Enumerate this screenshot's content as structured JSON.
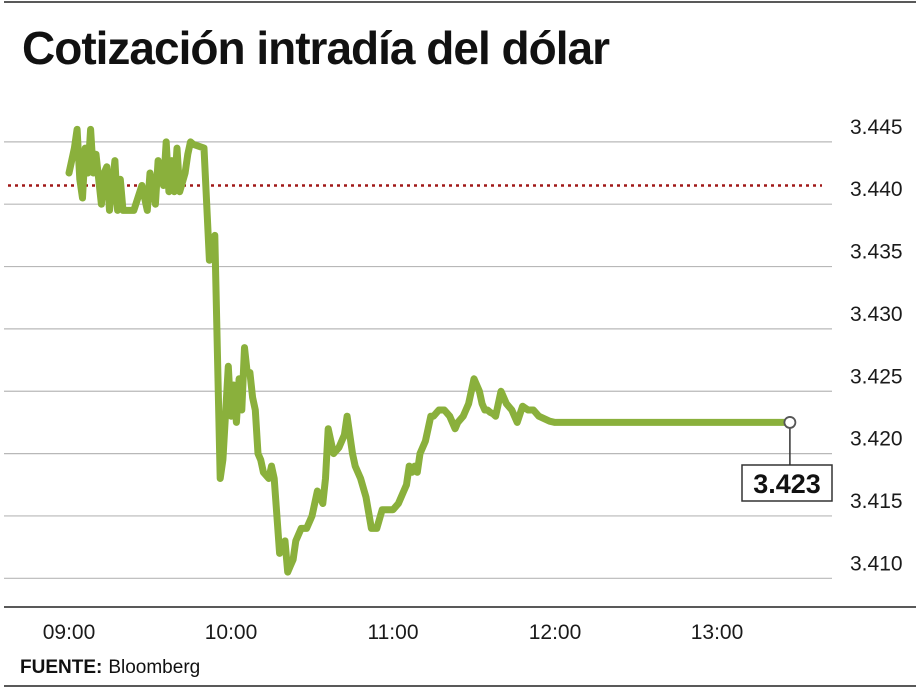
{
  "chart_data": {
    "type": "line",
    "title": "Cotización intradía del dólar",
    "x_ticks": [
      "09:00",
      "10:00",
      "11:00",
      "12:00",
      "13:00"
    ],
    "y_ticks": [
      "3.410",
      "3.415",
      "3.420",
      "3.425",
      "3.430",
      "3.435",
      "3.440",
      "3.445"
    ],
    "ylim": [
      3.409,
      3.447
    ],
    "xlim": [
      "08:52",
      "13:50"
    ],
    "grid": true,
    "reference_line": {
      "value": 3.4415,
      "style": "dotted",
      "color": "#a01818"
    },
    "last_value_label": "3.423",
    "colors": {
      "series": "#8ab03c",
      "reference": "#a01818"
    },
    "series": [
      {
        "x": [
          "09:00",
          "09:02",
          "09:03",
          "09:04",
          "09:05",
          "09:06",
          "09:07",
          "09:08",
          "09:09",
          "09:10",
          "09:12",
          "09:13",
          "09:14",
          "09:15",
          "09:17",
          "09:18",
          "09:19",
          "09:20",
          "09:21",
          "09:24",
          "09:27",
          "09:29",
          "09:30",
          "09:32",
          "09:33",
          "09:35",
          "09:36",
          "09:37",
          "09:38",
          "09:39",
          "09:40",
          "09:41",
          "09:43",
          "09:44",
          "09:45",
          "09:46",
          "09:50",
          "09:52",
          "09:54",
          "09:56",
          "09:57",
          "09:59",
          "10:00",
          "10:01",
          "10:02",
          "10:03",
          "10:04",
          "10:05",
          "10:06",
          "10:07",
          "10:08",
          "10:09",
          "10:10",
          "10:11",
          "10:12",
          "10:14",
          "10:15",
          "10:16",
          "10:18",
          "10:20",
          "10:21",
          "10:22",
          "10:23",
          "10:24",
          "10:26",
          "10:28",
          "10:30",
          "10:32",
          "10:34",
          "10:35",
          "10:36",
          "10:38",
          "10:40",
          "10:42",
          "10:43",
          "10:45",
          "10:46",
          "10:48",
          "10:50",
          "10:52",
          "10:54",
          "10:56",
          "10:58",
          "11:00",
          "11:02",
          "11:03",
          "11:04",
          "11:05",
          "11:06",
          "11:07",
          "11:08",
          "11:09",
          "11:10",
          "11:12",
          "11:13",
          "11:14",
          "11:15",
          "11:17",
          "11:19",
          "11:21",
          "11:23",
          "11:24",
          "11:26",
          "11:27",
          "11:28",
          "11:30",
          "11:32",
          "11:33",
          "11:34",
          "11:35",
          "11:36",
          "11:37",
          "11:38",
          "11:40",
          "11:42",
          "11:44",
          "11:45",
          "11:46",
          "11:48",
          "11:50",
          "11:52",
          "11:54",
          "11:56",
          "11:58",
          "12:00",
          "12:02",
          "12:04",
          "12:06",
          "12:08",
          "12:10",
          "12:12",
          "12:14",
          "12:16",
          "12:18",
          "12:20",
          "12:22",
          "12:24",
          "12:26",
          "12:28",
          "12:30",
          "12:32",
          "12:34",
          "12:36",
          "12:38",
          "12:40",
          "12:42",
          "12:44",
          "12:46",
          "12:48",
          "12:50",
          "12:52",
          "12:54",
          "12:56",
          "12:58",
          "13:00",
          "13:02",
          "13:04",
          "13:05",
          "13:07",
          "13:09",
          "13:11",
          "13:13",
          "13:15",
          "13:17",
          "13:19",
          "13:21",
          "13:23",
          "13:25",
          "13:27"
        ],
        "values": [
          3.4425,
          3.4445,
          3.446,
          3.442,
          3.4405,
          3.4445,
          3.4425,
          3.446,
          3.4425,
          3.444,
          3.44,
          3.4425,
          3.443,
          3.4395,
          3.4435,
          3.4395,
          3.442,
          3.4395,
          3.4395,
          3.4395,
          3.4415,
          3.4395,
          3.4425,
          3.44,
          3.4435,
          3.4415,
          3.445,
          3.441,
          3.4435,
          3.441,
          3.4445,
          3.441,
          3.4425,
          3.444,
          3.445,
          3.4448,
          3.4445,
          3.4355,
          3.4375,
          3.418,
          3.4195,
          3.427,
          3.423,
          3.4255,
          3.4225,
          3.426,
          3.4235,
          3.4285,
          3.4265,
          3.4265,
          3.4245,
          3.4235,
          3.42,
          3.4195,
          3.4185,
          3.418,
          3.419,
          3.418,
          3.412,
          3.413,
          3.4105,
          3.411,
          3.4115,
          3.413,
          3.414,
          3.414,
          3.415,
          3.417,
          3.416,
          3.418,
          3.422,
          3.42,
          3.4205,
          3.4215,
          3.423,
          3.42,
          3.419,
          3.418,
          3.4165,
          3.414,
          3.414,
          3.4155,
          3.4155,
          3.4155,
          3.416,
          3.4165,
          3.417,
          3.4175,
          3.419,
          3.4185,
          3.419,
          3.4185,
          3.42,
          3.421,
          3.422,
          3.423,
          3.423,
          3.4235,
          3.4235,
          3.423,
          3.422,
          3.4225,
          3.423,
          3.4235,
          3.424,
          3.426,
          3.425,
          3.424,
          3.4235,
          3.4235,
          3.4233,
          3.4232,
          3.423,
          3.425,
          3.424,
          3.4235,
          3.423,
          3.4225,
          3.4238,
          3.4235,
          3.4235,
          3.423,
          3.4228,
          3.4226,
          3.4225,
          3.4225,
          3.4225,
          3.4225,
          3.4225,
          3.4225,
          3.4225,
          3.4225,
          3.4225,
          3.4225,
          3.4225,
          3.4225,
          3.4225,
          3.4225,
          3.4225,
          3.4225,
          3.4225,
          3.4225,
          3.4225,
          3.4225,
          3.4225,
          3.4225,
          3.4225,
          3.4225,
          3.4225,
          3.4225,
          3.4225,
          3.4225,
          3.4225,
          3.4225,
          3.4225,
          3.4225,
          3.4225,
          3.4225,
          3.4225,
          3.4225,
          3.4225,
          3.4225,
          3.4225,
          3.4225,
          3.4225,
          3.4225,
          3.4225,
          3.4225,
          3.4225
        ]
      }
    ]
  },
  "source": {
    "key": "FUENTE:",
    "value": "Bloomberg"
  }
}
